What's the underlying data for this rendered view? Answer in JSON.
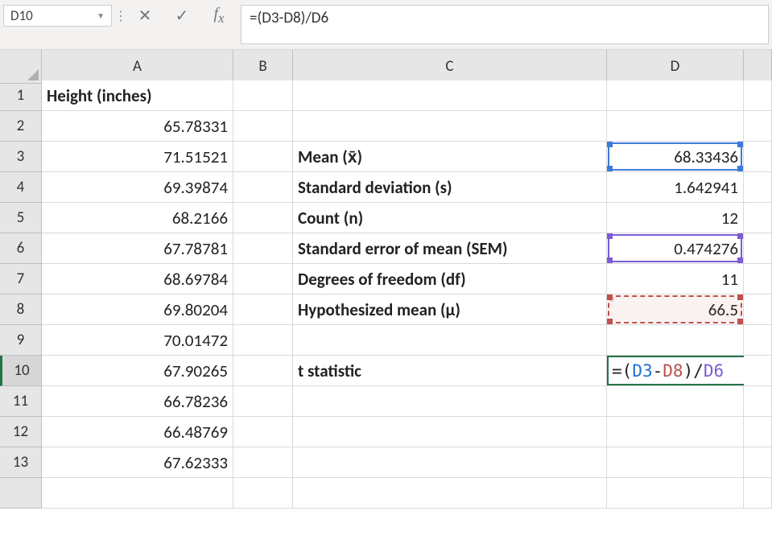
{
  "formula_bar": {
    "name_box": "D10",
    "formula": "=(D3-D8)/D6"
  },
  "columns": [
    "A",
    "B",
    "C",
    "D"
  ],
  "rows": [
    "1",
    "2",
    "3",
    "4",
    "5",
    "6",
    "7",
    "8",
    "9",
    "10",
    "11",
    "12",
    "13"
  ],
  "colA_header": "Height (inches)",
  "colA": [
    "65.78331",
    "71.51521",
    "69.39874",
    "68.2166",
    "67.78781",
    "68.69784",
    "69.80204",
    "70.01472",
    "67.90265",
    "66.78236",
    "66.48769",
    "67.62333"
  ],
  "colC": {
    "r3": "Mean (x̄)",
    "r4": "Standard deviation (s)",
    "r5": "Count (n)",
    "r6": "Standard error of mean (SEM)",
    "r7": "Degrees of freedom (df)",
    "r8": "Hypothesized mean (μ)",
    "r10": "t statistic"
  },
  "colD": {
    "r3": "68.33436",
    "r4": "1.642941",
    "r5": "12",
    "r6": "0.474276",
    "r7": "11",
    "r8": "66.5"
  },
  "edit_formula": {
    "eq": "=",
    "lp": "(",
    "ref1": "D3",
    "minus": "-",
    "ref2": "D8",
    "rp": ")",
    "slash": "/",
    "ref3": "D6"
  },
  "colors": {
    "blue": "#3d7bd9",
    "red": "#c0504d",
    "purple": "#7b5cd6",
    "selection_green": "#217346",
    "header_bg": "#e6e6e6"
  }
}
